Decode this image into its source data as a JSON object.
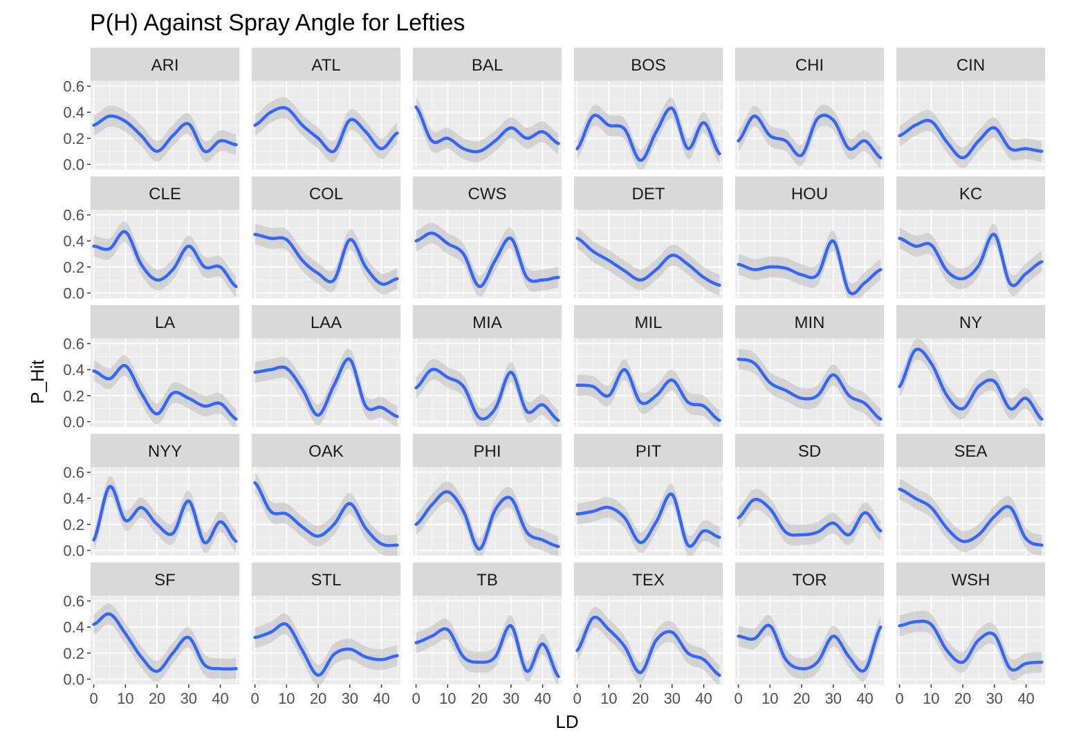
{
  "chart_data": {
    "type": "line",
    "title": "P(H) Against Spray Angle for Lefties",
    "xlabel": "LD",
    "ylabel": "P_Hit",
    "xlim": [
      -1,
      46
    ],
    "ylim": [
      -0.04,
      0.64
    ],
    "xticks": [
      0,
      10,
      20,
      30,
      40
    ],
    "xtick_labels": [
      "0",
      "10",
      "20",
      "30",
      "40"
    ],
    "yticks": [
      0.0,
      0.2,
      0.4,
      0.6
    ],
    "ytick_labels": [
      "0.0",
      "0.2",
      "0.4",
      "0.6"
    ],
    "grid": true,
    "colors": {
      "line": "#3366ff",
      "band": "#bdbdbd",
      "panel": "#ebebeb",
      "strip": "#d9d9d9",
      "grid": "#ffffff"
    },
    "x": [
      0,
      5,
      10,
      15,
      20,
      25,
      30,
      35,
      40,
      45
    ],
    "panels": [
      {
        "name": "ARI",
        "y": [
          0.3,
          0.37,
          0.33,
          0.22,
          0.1,
          0.22,
          0.31,
          0.1,
          0.18,
          0.15
        ]
      },
      {
        "name": "ATL",
        "y": [
          0.3,
          0.4,
          0.43,
          0.3,
          0.2,
          0.1,
          0.34,
          0.25,
          0.12,
          0.24
        ]
      },
      {
        "name": "BAL",
        "y": [
          0.44,
          0.18,
          0.2,
          0.12,
          0.1,
          0.18,
          0.28,
          0.2,
          0.25,
          0.16
        ]
      },
      {
        "name": "BOS",
        "y": [
          0.12,
          0.37,
          0.3,
          0.27,
          0.03,
          0.25,
          0.43,
          0.12,
          0.32,
          0.08
        ]
      },
      {
        "name": "CHI",
        "y": [
          0.18,
          0.37,
          0.22,
          0.18,
          0.07,
          0.35,
          0.34,
          0.12,
          0.18,
          0.05
        ]
      },
      {
        "name": "CIN",
        "y": [
          0.22,
          0.3,
          0.33,
          0.17,
          0.05,
          0.18,
          0.28,
          0.12,
          0.12,
          0.1
        ]
      },
      {
        "name": "CLE",
        "y": [
          0.36,
          0.34,
          0.47,
          0.22,
          0.1,
          0.18,
          0.36,
          0.2,
          0.2,
          0.05
        ]
      },
      {
        "name": "COL",
        "y": [
          0.45,
          0.42,
          0.41,
          0.25,
          0.15,
          0.1,
          0.41,
          0.2,
          0.07,
          0.11
        ]
      },
      {
        "name": "CWS",
        "y": [
          0.4,
          0.46,
          0.38,
          0.3,
          0.05,
          0.25,
          0.42,
          0.12,
          0.1,
          0.12
        ]
      },
      {
        "name": "DET",
        "y": [
          0.42,
          0.32,
          0.25,
          0.17,
          0.1,
          0.18,
          0.29,
          0.22,
          0.12,
          0.06
        ]
      },
      {
        "name": "HOU",
        "y": [
          0.22,
          0.18,
          0.2,
          0.19,
          0.14,
          0.14,
          0.4,
          0.01,
          0.08,
          0.18
        ]
      },
      {
        "name": "KC",
        "y": [
          0.42,
          0.36,
          0.37,
          0.17,
          0.11,
          0.21,
          0.45,
          0.07,
          0.15,
          0.24
        ]
      },
      {
        "name": "LA",
        "y": [
          0.39,
          0.33,
          0.43,
          0.22,
          0.06,
          0.22,
          0.18,
          0.12,
          0.14,
          0.02
        ]
      },
      {
        "name": "LAA",
        "y": [
          0.38,
          0.4,
          0.41,
          0.25,
          0.05,
          0.28,
          0.48,
          0.12,
          0.11,
          0.04
        ]
      },
      {
        "name": "MIA",
        "y": [
          0.26,
          0.4,
          0.34,
          0.27,
          0.03,
          0.1,
          0.38,
          0.08,
          0.13,
          0.01
        ]
      },
      {
        "name": "MIL",
        "y": [
          0.28,
          0.27,
          0.2,
          0.4,
          0.15,
          0.2,
          0.32,
          0.15,
          0.12,
          0.01
        ]
      },
      {
        "name": "MIN",
        "y": [
          0.48,
          0.45,
          0.3,
          0.24,
          0.18,
          0.2,
          0.36,
          0.2,
          0.14,
          0.02
        ]
      },
      {
        "name": "NY",
        "y": [
          0.27,
          0.55,
          0.45,
          0.2,
          0.1,
          0.27,
          0.31,
          0.1,
          0.18,
          0.02
        ]
      },
      {
        "name": "NYY",
        "y": [
          0.08,
          0.49,
          0.23,
          0.33,
          0.2,
          0.13,
          0.38,
          0.06,
          0.22,
          0.07
        ]
      },
      {
        "name": "OAK",
        "y": [
          0.52,
          0.3,
          0.28,
          0.18,
          0.11,
          0.2,
          0.36,
          0.17,
          0.05,
          0.04
        ]
      },
      {
        "name": "PHI",
        "y": [
          0.2,
          0.35,
          0.45,
          0.3,
          0.01,
          0.31,
          0.4,
          0.14,
          0.08,
          0.03
        ]
      },
      {
        "name": "PIT",
        "y": [
          0.28,
          0.3,
          0.33,
          0.25,
          0.06,
          0.22,
          0.43,
          0.04,
          0.15,
          0.1
        ]
      },
      {
        "name": "SD",
        "y": [
          0.25,
          0.39,
          0.32,
          0.14,
          0.12,
          0.14,
          0.21,
          0.12,
          0.29,
          0.15
        ]
      },
      {
        "name": "SEA",
        "y": [
          0.47,
          0.4,
          0.33,
          0.17,
          0.07,
          0.12,
          0.26,
          0.33,
          0.09,
          0.04
        ]
      },
      {
        "name": "SF",
        "y": [
          0.42,
          0.5,
          0.35,
          0.17,
          0.06,
          0.2,
          0.32,
          0.11,
          0.08,
          0.08
        ]
      },
      {
        "name": "STL",
        "y": [
          0.32,
          0.36,
          0.42,
          0.22,
          0.03,
          0.19,
          0.23,
          0.17,
          0.15,
          0.18
        ]
      },
      {
        "name": "TB",
        "y": [
          0.28,
          0.33,
          0.38,
          0.17,
          0.13,
          0.17,
          0.41,
          0.06,
          0.27,
          0.02
        ]
      },
      {
        "name": "TEX",
        "y": [
          0.22,
          0.47,
          0.38,
          0.25,
          0.05,
          0.3,
          0.36,
          0.2,
          0.15,
          0.03
        ]
      },
      {
        "name": "TOR",
        "y": [
          0.33,
          0.31,
          0.41,
          0.15,
          0.08,
          0.13,
          0.33,
          0.17,
          0.07,
          0.4
        ]
      },
      {
        "name": "WSH",
        "y": [
          0.41,
          0.44,
          0.42,
          0.22,
          0.13,
          0.3,
          0.34,
          0.08,
          0.12,
          0.13
        ]
      }
    ],
    "band_halfwidth": 0.08
  }
}
